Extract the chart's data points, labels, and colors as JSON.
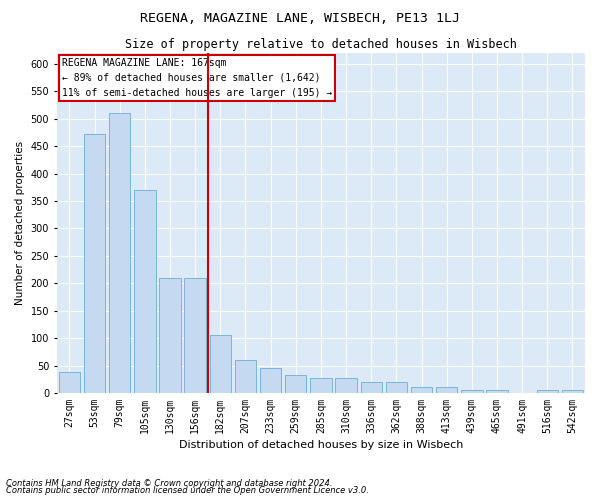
{
  "title": "REGENA, MAGAZINE LANE, WISBECH, PE13 1LJ",
  "subtitle": "Size of property relative to detached houses in Wisbech",
  "xlabel": "Distribution of detached houses by size in Wisbech",
  "ylabel": "Number of detached properties",
  "categories": [
    "27sqm",
    "53sqm",
    "79sqm",
    "105sqm",
    "130sqm",
    "156sqm",
    "182sqm",
    "207sqm",
    "233sqm",
    "259sqm",
    "285sqm",
    "310sqm",
    "336sqm",
    "362sqm",
    "388sqm",
    "413sqm",
    "439sqm",
    "465sqm",
    "491sqm",
    "516sqm",
    "542sqm"
  ],
  "values": [
    38,
    472,
    510,
    370,
    210,
    210,
    105,
    60,
    45,
    32,
    27,
    27,
    20,
    20,
    10,
    10,
    5,
    5,
    0,
    5,
    5
  ],
  "bar_color": "#c5d9f0",
  "bar_edge_color": "#6baed6",
  "vline_x": 6,
  "vline_color": "#cc0000",
  "annotation_box_text": "REGENA MAGAZINE LANE: 167sqm\n← 89% of detached houses are smaller (1,642)\n11% of semi-detached houses are larger (195) →",
  "box_edge_color": "#cc0000",
  "footnote1": "Contains HM Land Registry data © Crown copyright and database right 2024.",
  "footnote2": "Contains public sector information licensed under the Open Government Licence v3.0.",
  "title_fontsize": 9.5,
  "subtitle_fontsize": 8.5,
  "xlabel_fontsize": 8,
  "ylabel_fontsize": 7.5,
  "tick_fontsize": 7,
  "annotation_fontsize": 7,
  "footnote_fontsize": 6,
  "ylim": [
    0,
    620
  ],
  "yticks": [
    0,
    50,
    100,
    150,
    200,
    250,
    300,
    350,
    400,
    450,
    500,
    550,
    600
  ],
  "background_color": "#dce9f7"
}
